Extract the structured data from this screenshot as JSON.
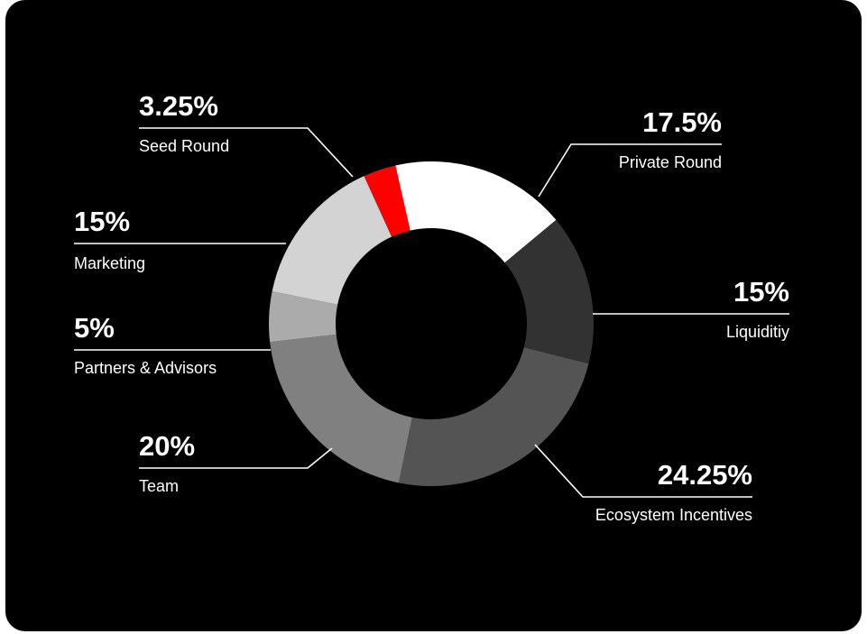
{
  "chart_data": {
    "type": "pie",
    "style": "donut",
    "title": "",
    "series": [
      {
        "slices": [
          {
            "label": "Private Round",
            "display": "17.5%",
            "value": 17.5,
            "color": "#ffffff"
          },
          {
            "label": "Liquiditiy",
            "display": "15%",
            "value": 15,
            "color": "#323232"
          },
          {
            "label": "Ecosystem Incentives",
            "display": "24.25%",
            "value": 24.25,
            "color": "#545454"
          },
          {
            "label": "Team",
            "display": "20%",
            "value": 20,
            "color": "#808080"
          },
          {
            "label": "Partners & Advisors",
            "display": "5%",
            "value": 5,
            "color": "#ababab"
          },
          {
            "label": "Marketing",
            "display": "15%",
            "value": 15,
            "color": "#d3d3d3"
          },
          {
            "label": "Seed Round",
            "display": "3.25%",
            "value": 3.25,
            "color": "#ff0000"
          }
        ]
      }
    ],
    "legend": "callout labels"
  },
  "colors": {
    "background": "#000000",
    "text": "#ffffff",
    "leader_lines": "#ffffff"
  }
}
